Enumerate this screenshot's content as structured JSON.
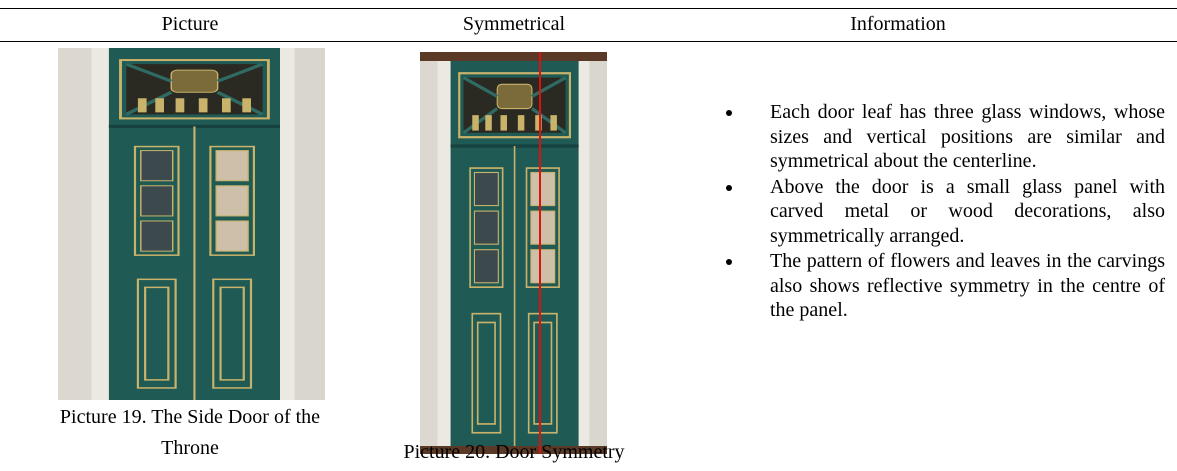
{
  "table": {
    "headers": [
      "Picture",
      "Symmetrical",
      "Information"
    ],
    "rows": [
      [
        "Picture 19. The Side Door of the Throne",
        "Picture 20. Door Symmetry",
        [
          "Each door leaf has three glass windows, whose sizes and vertical positions are similar and symmetrical about the centerline.",
          "Above the door is a small glass panel with carved metal or wood decorations, also symmetrically arranged.",
          "The pattern of flowers and leaves in the carvings also shows reflective symmetry in the centre of the panel."
        ]
      ]
    ]
  }
}
